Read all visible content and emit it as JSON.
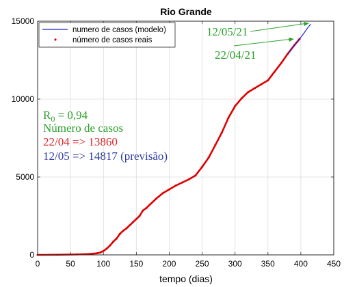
{
  "chart_data": {
    "type": "line",
    "title": "Rio Grande",
    "xlabel": "tempo (dias)",
    "ylabel": "",
    "xlim": [
      0,
      450
    ],
    "ylim": [
      0,
      15000
    ],
    "xticks": [
      0,
      50,
      100,
      150,
      200,
      250,
      300,
      350,
      400,
      450
    ],
    "yticks": [
      0,
      5000,
      10000,
      15000
    ],
    "grid": true,
    "legend": "top-right",
    "series": [
      {
        "name": "numero de casos (modelo)",
        "style": "line",
        "color": "#1f1fd0",
        "x": [
          380,
          390,
          398,
          405,
          410,
          415
        ],
        "y": [
          12900,
          13450,
          13860,
          14250,
          14550,
          14817
        ]
      },
      {
        "name": "número de casos reais",
        "style": "markers",
        "color": "#e00000",
        "x": [
          0,
          30,
          60,
          80,
          90,
          95,
          100,
          105,
          110,
          115,
          120,
          125,
          130,
          135,
          140,
          145,
          150,
          155,
          160,
          165,
          170,
          180,
          190,
          200,
          210,
          220,
          230,
          240,
          250,
          260,
          270,
          280,
          290,
          300,
          310,
          320,
          330,
          340,
          350,
          360,
          370,
          380,
          390,
          398
        ],
        "y": [
          0,
          10,
          30,
          60,
          100,
          150,
          250,
          400,
          600,
          850,
          1050,
          1350,
          1550,
          1700,
          1900,
          2100,
          2300,
          2500,
          2850,
          3000,
          3200,
          3600,
          3950,
          4200,
          4450,
          4650,
          4850,
          5100,
          5650,
          6250,
          7050,
          7850,
          8800,
          9550,
          10050,
          10450,
          10700,
          10950,
          11200,
          11750,
          12300,
          12900,
          13450,
          13860
        ]
      }
    ],
    "annotations": {
      "label_1205": "12/05/21",
      "label_2204": "22/04/21",
      "r0_prefix": "R",
      "r0_sub": "0",
      "r0_value": " = 0,94",
      "cases_title": "Número de casos",
      "line_2204": "22/04 => 13860",
      "line_1205": "12/05 => 14817 (previsão)"
    },
    "colors": {
      "annotation_green": "#2ca02c",
      "annotation_red": "#d62728",
      "annotation_blue": "#2c3aa0"
    }
  }
}
